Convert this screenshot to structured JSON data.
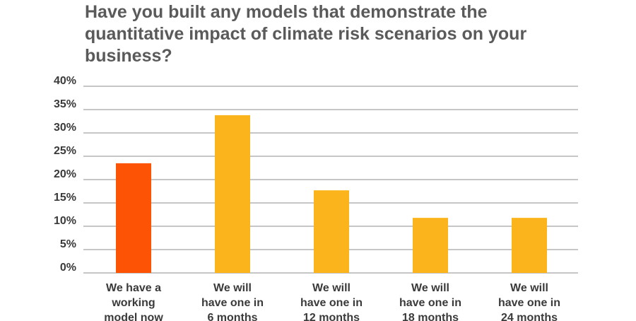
{
  "chart_data": {
    "type": "bar",
    "title": "Have you built any models that demonstrate the quantitative impact of climate risk scenarios on your business?",
    "categories": [
      [
        "We have a",
        "working",
        "model now"
      ],
      [
        "We will",
        "have one in",
        "6 months"
      ],
      [
        "We will",
        "have one in",
        "12 months"
      ],
      [
        "We will",
        "have one in",
        "18 months"
      ],
      [
        "We will",
        "have one in",
        "24 months"
      ]
    ],
    "values": [
      23.5,
      33.8,
      17.7,
      11.8,
      11.8
    ],
    "colors": [
      "#fc5305",
      "#fcb41c",
      "#fcb41c",
      "#fcb41c",
      "#fcb41c"
    ],
    "y_ticks": [
      "0%",
      "5%",
      "10%",
      "15%",
      "20%",
      "25%",
      "30%",
      "35%",
      "40%"
    ],
    "y_tick_values": [
      0,
      5,
      10,
      15,
      20,
      25,
      30,
      35,
      40
    ],
    "ylim": [
      0,
      40
    ],
    "grid": true,
    "legend": "none"
  }
}
